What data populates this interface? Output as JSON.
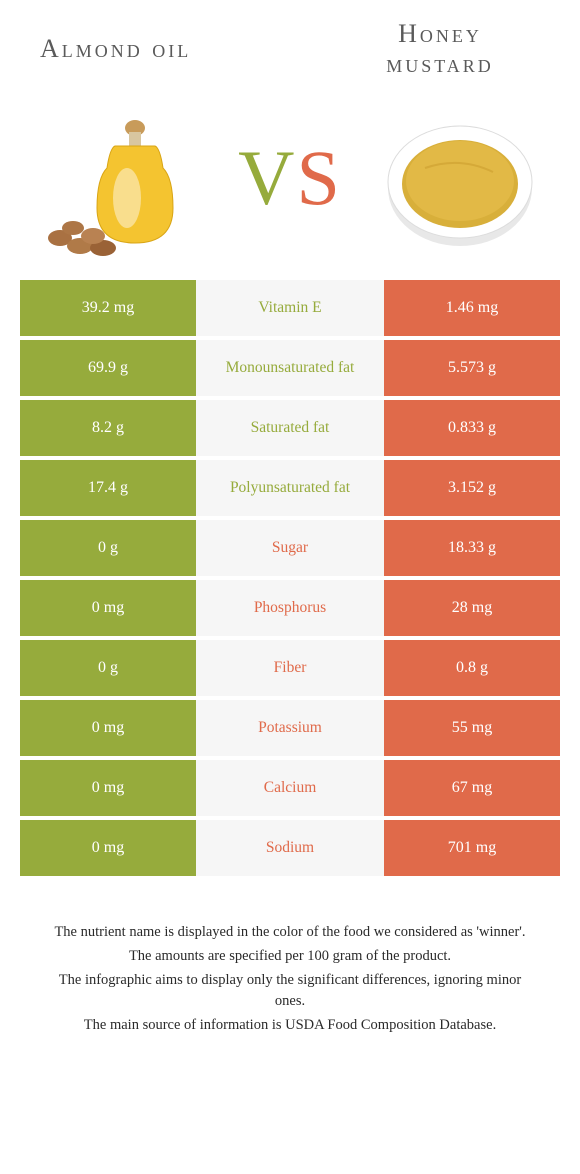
{
  "colors": {
    "green": "#96ab3c",
    "orange": "#e06a4a",
    "nutrient_bg": "#f6f6f6",
    "title_grey": "#5a5a5a",
    "text_dark": "#2a2a2a"
  },
  "foods": {
    "left": {
      "name": "Almond oil",
      "color": "#96ab3c"
    },
    "right": {
      "name": "Honey\nmustard",
      "color": "#e06a4a"
    }
  },
  "vs_label": {
    "v": "V",
    "s": "S"
  },
  "rows": [
    {
      "left": "39.2 mg",
      "nutrient": "Vitamin E",
      "right": "1.46 mg",
      "winner": "left"
    },
    {
      "left": "69.9 g",
      "nutrient": "Monounsaturated fat",
      "right": "5.573 g",
      "winner": "left"
    },
    {
      "left": "8.2 g",
      "nutrient": "Saturated fat",
      "right": "0.833 g",
      "winner": "left"
    },
    {
      "left": "17.4 g",
      "nutrient": "Polyunsaturated fat",
      "right": "3.152 g",
      "winner": "left"
    },
    {
      "left": "0 g",
      "nutrient": "Sugar",
      "right": "18.33 g",
      "winner": "right"
    },
    {
      "left": "0 mg",
      "nutrient": "Phosphorus",
      "right": "28 mg",
      "winner": "right"
    },
    {
      "left": "0 g",
      "nutrient": "Fiber",
      "right": "0.8 g",
      "winner": "right"
    },
    {
      "left": "0 mg",
      "nutrient": "Potassium",
      "right": "55 mg",
      "winner": "right"
    },
    {
      "left": "0 mg",
      "nutrient": "Calcium",
      "right": "67 mg",
      "winner": "right"
    },
    {
      "left": "0 mg",
      "nutrient": "Sodium",
      "right": "701 mg",
      "winner": "right"
    }
  ],
  "footer": [
    "The nutrient name is displayed in the color of the food we considered as 'winner'.",
    "The amounts are specified per 100 gram of the product.",
    "The infographic aims to display only the significant differences, ignoring minor ones.",
    "The main source of information is USDA Food Composition Database."
  ]
}
